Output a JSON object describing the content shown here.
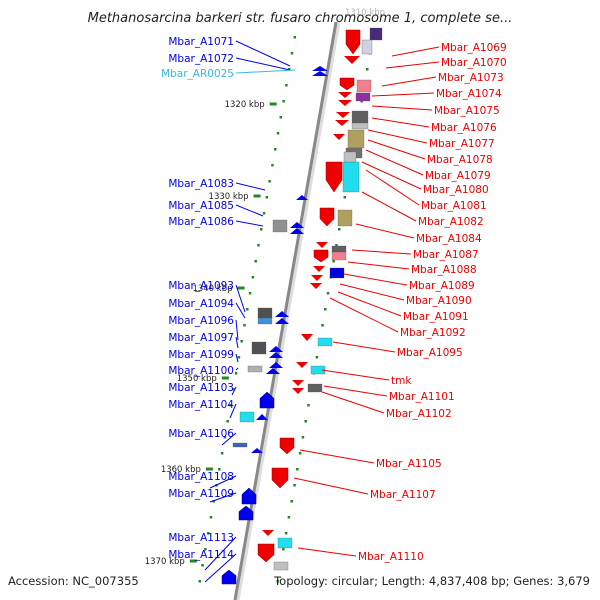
{
  "title": "Methanosarcina barkeri str. fusaro chromosome 1, complete se...",
  "top_tick_label": "1310 kbp",
  "footer": {
    "accession": "Accession: NC_007355",
    "summary": "Topology: circular; Length: 4,837,408 bp; Genes: 3,679"
  },
  "colors": {
    "forward_gene": "#0000ee",
    "reverse_gene": "#ee0000",
    "rna_gene": "#33bbdd",
    "backbone": "#888888",
    "tick": "#228822"
  },
  "kbp_ticks": [
    "1320 kbp",
    "1330 kbp",
    "1340 kbp",
    "1350 kbp",
    "1360 kbp",
    "1370 kbp"
  ],
  "left_genes": [
    {
      "label": "Mbar_A1071",
      "type": "cds"
    },
    {
      "label": "Mbar_A1072",
      "type": "cds"
    },
    {
      "label": "Mbar_AR0025",
      "type": "rna"
    },
    {
      "label": "Mbar_A1083",
      "type": "cds"
    },
    {
      "label": "Mbar_A1085",
      "type": "cds"
    },
    {
      "label": "Mbar_A1086",
      "type": "cds"
    },
    {
      "label": "Mbar_A1093",
      "type": "cds"
    },
    {
      "label": "Mbar_A1094",
      "type": "cds"
    },
    {
      "label": "Mbar_A1096",
      "type": "cds"
    },
    {
      "label": "Mbar_A1097",
      "type": "cds"
    },
    {
      "label": "Mbar_A1099",
      "type": "cds"
    },
    {
      "label": "Mbar_A1100",
      "type": "cds"
    },
    {
      "label": "Mbar_A1103",
      "type": "cds"
    },
    {
      "label": "Mbar_A1104",
      "type": "cds"
    },
    {
      "label": "Mbar_A1106",
      "type": "cds"
    },
    {
      "label": "Mbar_A1108",
      "type": "cds"
    },
    {
      "label": "Mbar_A1109",
      "type": "cds"
    },
    {
      "label": "Mbar_A1113",
      "type": "cds"
    },
    {
      "label": "Mbar_A1114",
      "type": "cds"
    }
  ],
  "right_genes": [
    {
      "label": "Mbar_A1069"
    },
    {
      "label": "Mbar_A1070"
    },
    {
      "label": "Mbar_A1073"
    },
    {
      "label": "Mbar_A1074"
    },
    {
      "label": "Mbar_A1075"
    },
    {
      "label": "Mbar_A1076"
    },
    {
      "label": "Mbar_A1077"
    },
    {
      "label": "Mbar_A1078"
    },
    {
      "label": "Mbar_A1079"
    },
    {
      "label": "Mbar_A1080"
    },
    {
      "label": "Mbar_A1081"
    },
    {
      "label": "Mbar_A1082"
    },
    {
      "label": "Mbar_A1084"
    },
    {
      "label": "Mbar_A1087"
    },
    {
      "label": "Mbar_A1088"
    },
    {
      "label": "Mbar_A1089"
    },
    {
      "label": "Mbar_A1090"
    },
    {
      "label": "Mbar_A1091"
    },
    {
      "label": "Mbar_A1092"
    },
    {
      "label": "Mbar_A1095"
    },
    {
      "label": "tmk"
    },
    {
      "label": "Mbar_A1101"
    },
    {
      "label": "Mbar_A1102"
    },
    {
      "label": "Mbar_A1105"
    },
    {
      "label": "Mbar_A1107"
    },
    {
      "label": "Mbar_A1110"
    }
  ]
}
